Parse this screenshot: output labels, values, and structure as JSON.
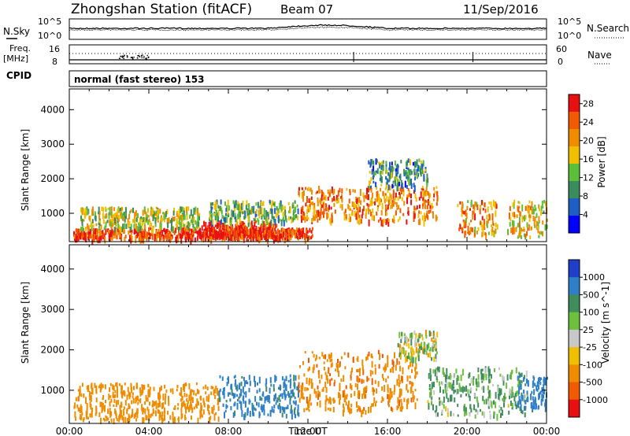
{
  "header": {
    "station": "Zhongshan Station (fitACF)",
    "beam": "Beam 07",
    "date": "11/Sep/2016"
  },
  "noise_panel": {
    "left_label": "N.Sky",
    "right_label": "N.Search",
    "left_ticks": [
      "10^5",
      "10^0"
    ],
    "right_ticks": [
      "10^5",
      "10^0"
    ]
  },
  "freq_panel": {
    "left_label_1": "Freq.",
    "left_label_2": "[MHz]",
    "right_label": "Nave",
    "left_ticks": [
      "16",
      "8"
    ],
    "right_ticks": [
      "60",
      "0"
    ]
  },
  "cpid": {
    "label": "CPID",
    "mode": "normal (fast stereo) 153"
  },
  "chart_data": [
    {
      "type": "heatmap",
      "title": "",
      "xlabel": "Time UT",
      "ylabel": "Slant Range [km]",
      "x_ticks": [
        "00:00",
        "04:00",
        "08:00",
        "12:00",
        "16:00",
        "20:00",
        "00:00"
      ],
      "xlim_hours": [
        0,
        24
      ],
      "y_ticks": [
        1000,
        2000,
        3000,
        4000
      ],
      "ylim": [
        180,
        4600
      ],
      "colorbar": {
        "label": "Power [dB]",
        "ticks": [
          4,
          8,
          12,
          16,
          20,
          24,
          28
        ],
        "range": [
          0,
          30
        ],
        "colors": [
          "#0000ff",
          "#1f5fc4",
          "#3a8c5c",
          "#5cbf3a",
          "#f0c000",
          "#f08c00",
          "#f05a00",
          "#e81010"
        ]
      },
      "scatter_regions": [
        {
          "t": [
            0.2,
            12.2
          ],
          "range_km": [
            300,
            600
          ],
          "level": 26
        },
        {
          "t": [
            0.5,
            6.5
          ],
          "range_km": [
            600,
            1200
          ],
          "level": 15
        },
        {
          "t": [
            6.5,
            10.5
          ],
          "range_km": [
            350,
            800
          ],
          "level": 28
        },
        {
          "t": [
            7.0,
            11.5
          ],
          "range_km": [
            800,
            1400
          ],
          "level": 12
        },
        {
          "t": [
            11.5,
            18.5
          ],
          "range_km": [
            800,
            1800
          ],
          "level": 22
        },
        {
          "t": [
            15.0,
            18.0
          ],
          "range_km": [
            1800,
            2600
          ],
          "level": 10
        },
        {
          "t": [
            19.5,
            21.5
          ],
          "range_km": [
            400,
            1400
          ],
          "level": 20
        },
        {
          "t": [
            22.0,
            24.0
          ],
          "range_km": [
            350,
            1400
          ],
          "level": 18
        }
      ]
    },
    {
      "type": "heatmap",
      "title": "",
      "xlabel": "Time UT",
      "ylabel": "Slant Range [km]",
      "x_ticks": [
        "00:00",
        "04:00",
        "08:00",
        "12:00",
        "16:00",
        "20:00",
        "00:00"
      ],
      "xlim_hours": [
        0,
        24
      ],
      "y_ticks": [
        1000,
        2000,
        3000,
        4000
      ],
      "ylim": [
        180,
        4600
      ],
      "colorbar": {
        "label": "Velocity [m s^-1]",
        "tick_labels": [
          "1000",
          "500",
          "100",
          "25",
          "-25",
          "-100",
          "-500",
          "-1000"
        ],
        "colors": [
          "#1f3fc8",
          "#2f7fc8",
          "#3f8c5c",
          "#6cc03c",
          "#c8c8c8",
          "#f0c000",
          "#f08c00",
          "#f05a00",
          "#e81010"
        ]
      },
      "scatter_regions": [
        {
          "t": [
            0.2,
            7.5
          ],
          "range_km": [
            300,
            1200
          ],
          "level": -300
        },
        {
          "t": [
            7.5,
            11.5
          ],
          "range_km": [
            400,
            1400
          ],
          "level": 600
        },
        {
          "t": [
            11.5,
            17.5
          ],
          "range_km": [
            500,
            2000
          ],
          "level": -400
        },
        {
          "t": [
            16.5,
            18.5
          ],
          "range_km": [
            1800,
            2500
          ],
          "level": 10
        },
        {
          "t": [
            18.0,
            23.0
          ],
          "range_km": [
            400,
            1600
          ],
          "level": 120
        },
        {
          "t": [
            22.5,
            24.0
          ],
          "range_km": [
            600,
            1400
          ],
          "level": 800
        }
      ]
    }
  ]
}
